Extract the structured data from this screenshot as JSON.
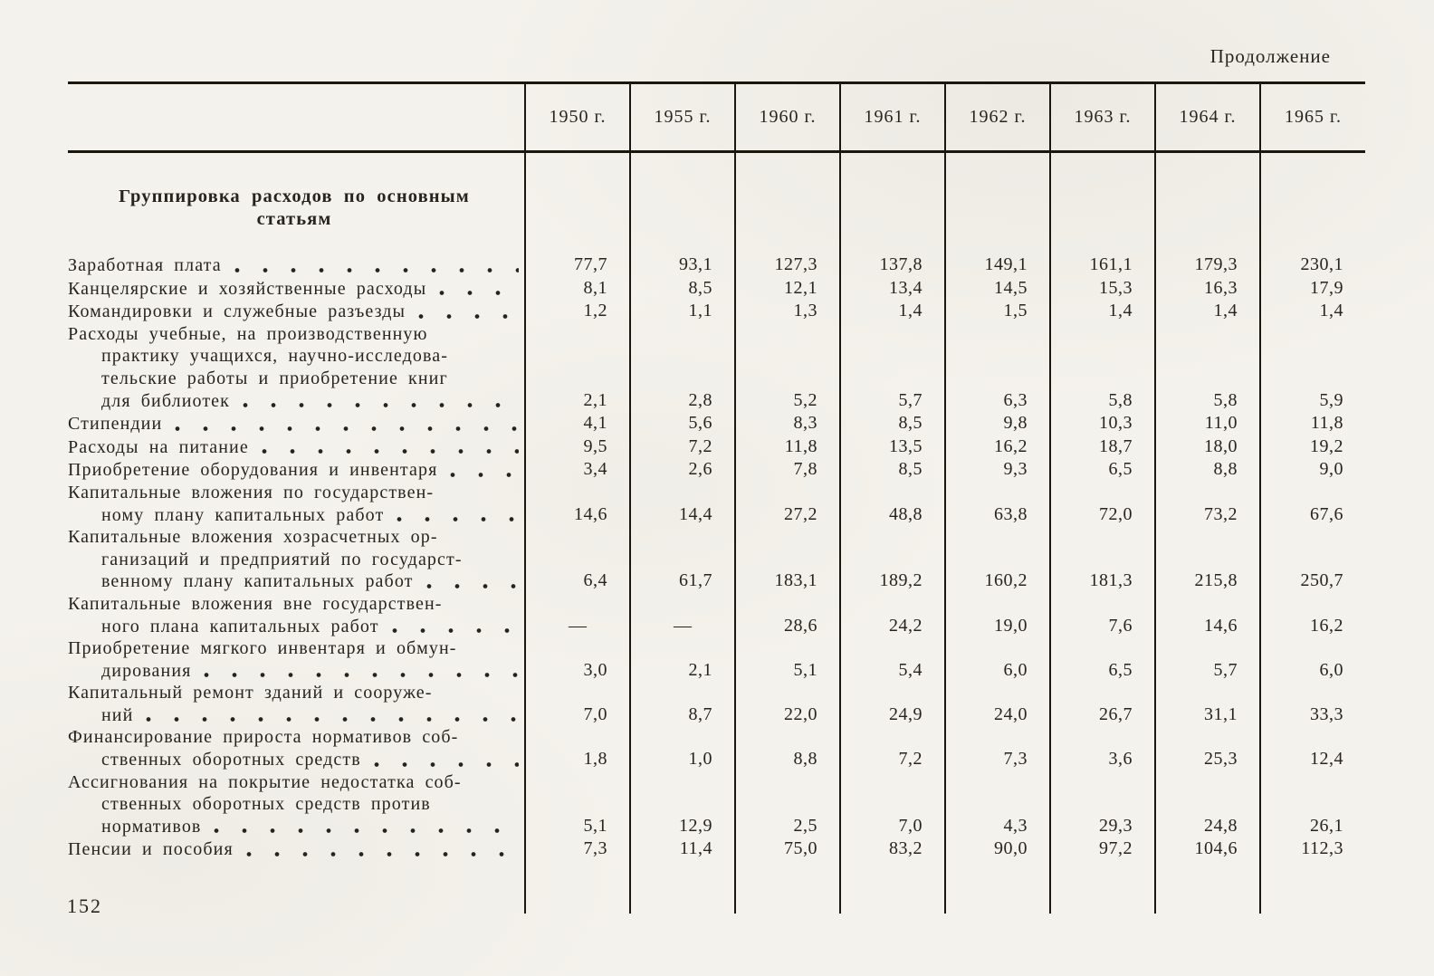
{
  "page": {
    "continuation_label": "Продолжение",
    "page_number": "152"
  },
  "colors": {
    "paper": "#f4f2ec",
    "ink": "#27241e",
    "rule": "#1a170f"
  },
  "table": {
    "section_heading_lines": [
      "Группировка расходов по основным",
      "статьям"
    ],
    "columns": [
      "1950 г.",
      "1955 г.",
      "1960 г.",
      "1961 г.",
      "1962 г.",
      "1963 г.",
      "1964 г.",
      "1965 г."
    ],
    "rows": [
      {
        "label_lines": [
          "Заработная плата"
        ],
        "values": [
          "77,7",
          "93,1",
          "127,3",
          "137,8",
          "149,1",
          "161,1",
          "179,3",
          "230,1"
        ]
      },
      {
        "label_lines": [
          "Канцелярские и хозяйственные расходы"
        ],
        "values": [
          "8,1",
          "8,5",
          "12,1",
          "13,4",
          "14,5",
          "15,3",
          "16,3",
          "17,9"
        ]
      },
      {
        "label_lines": [
          "Командировки и служебные разъезды"
        ],
        "values": [
          "1,2",
          "1,1",
          "1,3",
          "1,4",
          "1,5",
          "1,4",
          "1,4",
          "1,4"
        ]
      },
      {
        "label_lines": [
          "Расходы учебные, на производственную",
          "практику учащихся, научно-исследова-",
          "тельские работы и приобретение книг",
          "для библиотек"
        ],
        "values": [
          "2,1",
          "2,8",
          "5,2",
          "5,7",
          "6,3",
          "5,8",
          "5,8",
          "5,9"
        ]
      },
      {
        "label_lines": [
          "Стипендии"
        ],
        "values": [
          "4,1",
          "5,6",
          "8,3",
          "8,5",
          "9,8",
          "10,3",
          "11,0",
          "11,8"
        ]
      },
      {
        "label_lines": [
          "Расходы на питание"
        ],
        "values": [
          "9,5",
          "7,2",
          "11,8",
          "13,5",
          "16,2",
          "18,7",
          "18,0",
          "19,2"
        ]
      },
      {
        "label_lines": [
          "Приобретение оборудования и инвентаря"
        ],
        "values": [
          "3,4",
          "2,6",
          "7,8",
          "8,5",
          "9,3",
          "6,5",
          "8,8",
          "9,0"
        ]
      },
      {
        "label_lines": [
          "Капитальные вложения по государствен-",
          "ному плану капитальных работ"
        ],
        "values": [
          "14,6",
          "14,4",
          "27,2",
          "48,8",
          "63,8",
          "72,0",
          "73,2",
          "67,6"
        ]
      },
      {
        "label_lines": [
          "Капитальные вложения хозрасчетных ор-",
          "ганизаций и предприятий по государст-",
          "венному плану капитальных работ"
        ],
        "values": [
          "6,4",
          "61,7",
          "183,1",
          "189,2",
          "160,2",
          "181,3",
          "215,8",
          "250,7"
        ]
      },
      {
        "label_lines": [
          "Капитальные вложения вне государствен-",
          "ного плана капитальных работ"
        ],
        "values": [
          "—",
          "—",
          "28,6",
          "24,2",
          "19,0",
          "7,6",
          "14,6",
          "16,2"
        ]
      },
      {
        "label_lines": [
          "Приобретение мягкого инвентаря и обмун-",
          "дирования"
        ],
        "values": [
          "3,0",
          "2,1",
          "5,1",
          "5,4",
          "6,0",
          "6,5",
          "5,7",
          "6,0"
        ]
      },
      {
        "label_lines": [
          "Капитальный ремонт зданий и сооруже-",
          "ний"
        ],
        "values": [
          "7,0",
          "8,7",
          "22,0",
          "24,9",
          "24,0",
          "26,7",
          "31,1",
          "33,3"
        ]
      },
      {
        "label_lines": [
          "Финансирование прироста нормативов соб-",
          "ственных оборотных средств"
        ],
        "values": [
          "1,8",
          "1,0",
          "8,8",
          "7,2",
          "7,3",
          "3,6",
          "25,3",
          "12,4"
        ]
      },
      {
        "label_lines": [
          "Ассигнования на покрытие недостатка соб-",
          "ственных оборотных средств против",
          "нормативов"
        ],
        "values": [
          "5,1",
          "12,9",
          "2,5",
          "7,0",
          "4,3",
          "29,3",
          "24,8",
          "26,1"
        ]
      },
      {
        "label_lines": [
          "Пенсии и пособия"
        ],
        "values": [
          "7,3",
          "11,4",
          "75,0",
          "83,2",
          "90,0",
          "97,2",
          "104,6",
          "112,3"
        ]
      }
    ]
  }
}
